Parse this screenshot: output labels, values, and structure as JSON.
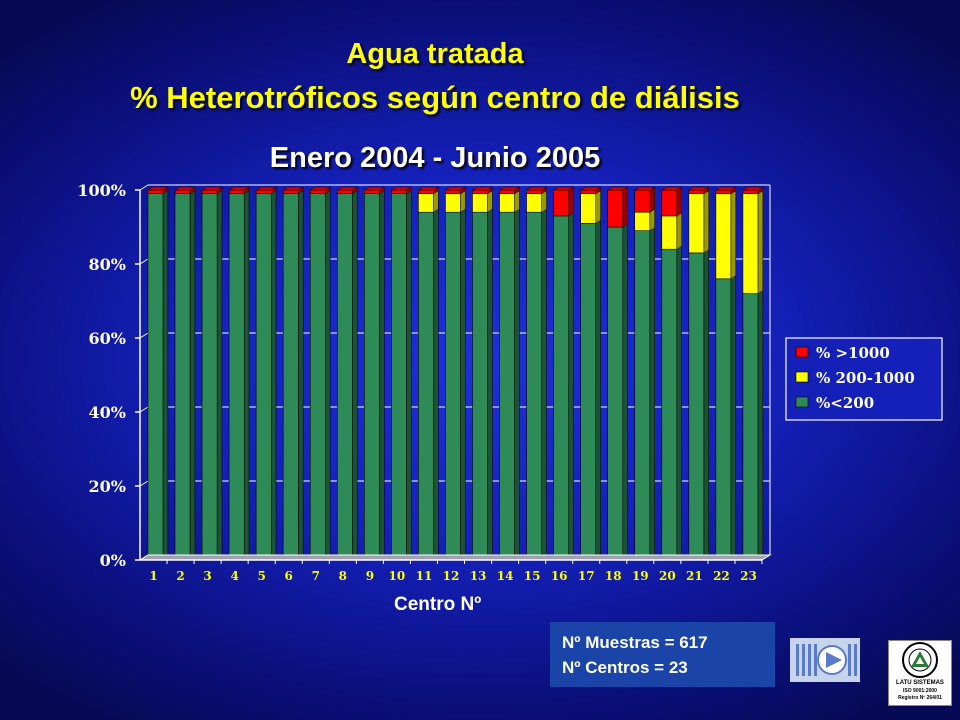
{
  "header": {
    "title_line1": "Agua tratada",
    "title_line2": "% Heterotróficos según centro de diálisis",
    "chart_title": "Enero 2004 - Junio 2005"
  },
  "info": {
    "muestras": "Nº Muestras = 617",
    "centros": "Nº Centros = 23"
  },
  "logos": {
    "latu_line1": "LATU SISTEMAS",
    "latu_line2": "ISO 9001:2000",
    "latu_line3": "Registro Nº 264/01"
  },
  "chart_data": {
    "type": "bar",
    "stacked": true,
    "percent": true,
    "title": "Enero 2004 - Junio 2005",
    "xlabel": "Centro Nº",
    "ylabel": "",
    "categories": [
      "1",
      "2",
      "3",
      "4",
      "5",
      "6",
      "7",
      "8",
      "9",
      "10",
      "11",
      "12",
      "13",
      "14",
      "15",
      "16",
      "17",
      "18",
      "19",
      "20",
      "21",
      "22",
      "23"
    ],
    "y_ticks": [
      "0%",
      "20%",
      "40%",
      "60%",
      "80%",
      "100%"
    ],
    "ylim": [
      0,
      100
    ],
    "series": [
      {
        "name": "%<200",
        "color": "#2e8b57",
        "values": [
          99,
          99,
          99,
          99,
          99,
          99,
          99,
          99,
          99,
          99,
          94,
          94,
          94,
          94,
          94,
          93,
          91,
          90,
          89,
          84,
          83,
          76,
          72
        ]
      },
      {
        "name": "% 200-1000",
        "color": "#ffff00",
        "values": [
          0,
          0,
          0,
          0,
          0,
          0,
          0,
          0,
          0,
          0,
          5,
          5,
          5,
          5,
          5,
          0,
          8,
          0,
          5,
          9,
          16,
          23,
          27
        ]
      },
      {
        "name": "% >1000",
        "color": "#ff0000",
        "values": [
          1,
          1,
          1,
          1,
          1,
          1,
          1,
          1,
          1,
          1,
          1,
          1,
          1,
          1,
          1,
          7,
          1,
          10,
          6,
          7,
          1,
          1,
          1
        ]
      }
    ],
    "legend_position": "right",
    "legend_order": [
      "% >1000",
      "% 200-1000",
      "%<200"
    ],
    "grid": true
  }
}
